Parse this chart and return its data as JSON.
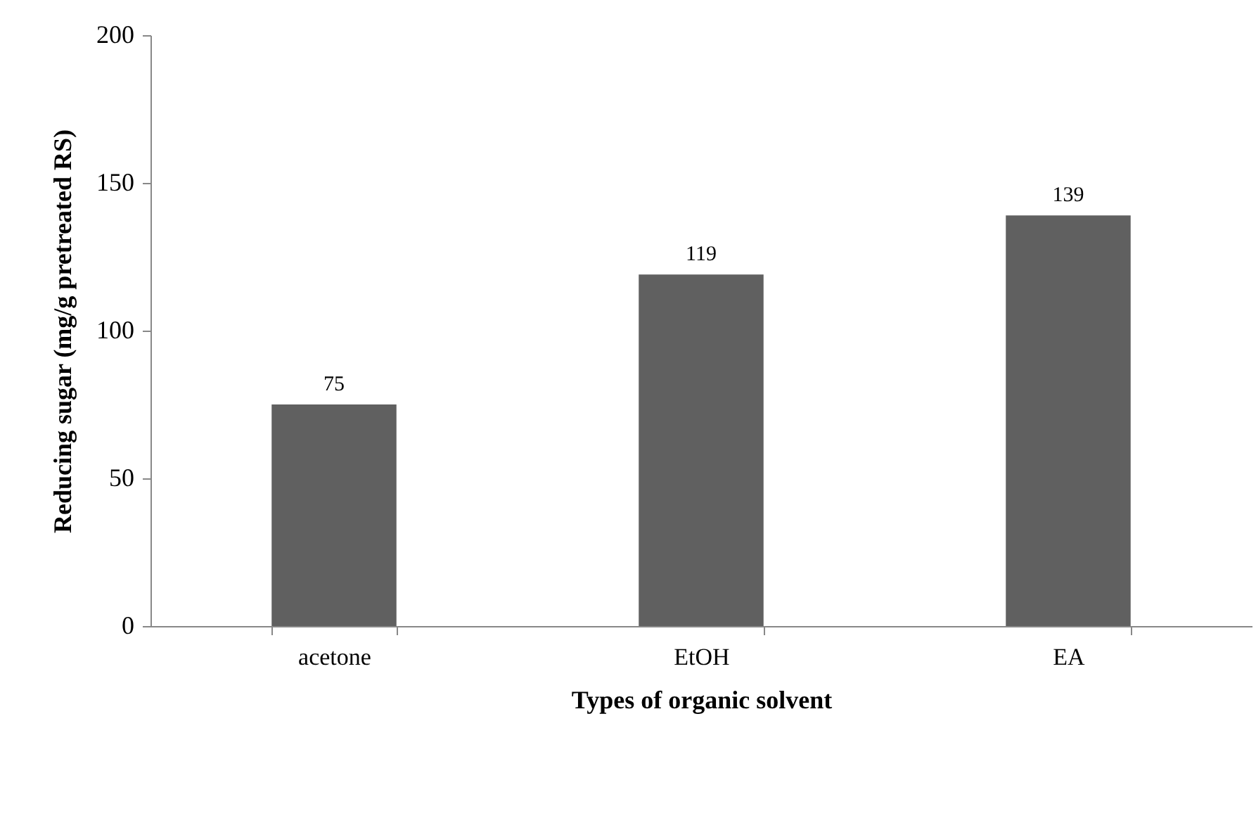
{
  "chart_data": {
    "type": "bar",
    "xlabel": "Types of organic solvent",
    "ylabel": "Reducing sugar (mg/g pretreated RS)",
    "categories": [
      "acetone",
      "EtOH",
      "EA"
    ],
    "values": [
      75,
      119,
      139
    ],
    "color": "#606060",
    "ylim": [
      0,
      200
    ],
    "yticks": [
      0,
      50,
      100,
      150,
      200
    ],
    "grid": false,
    "data_labels": true
  }
}
